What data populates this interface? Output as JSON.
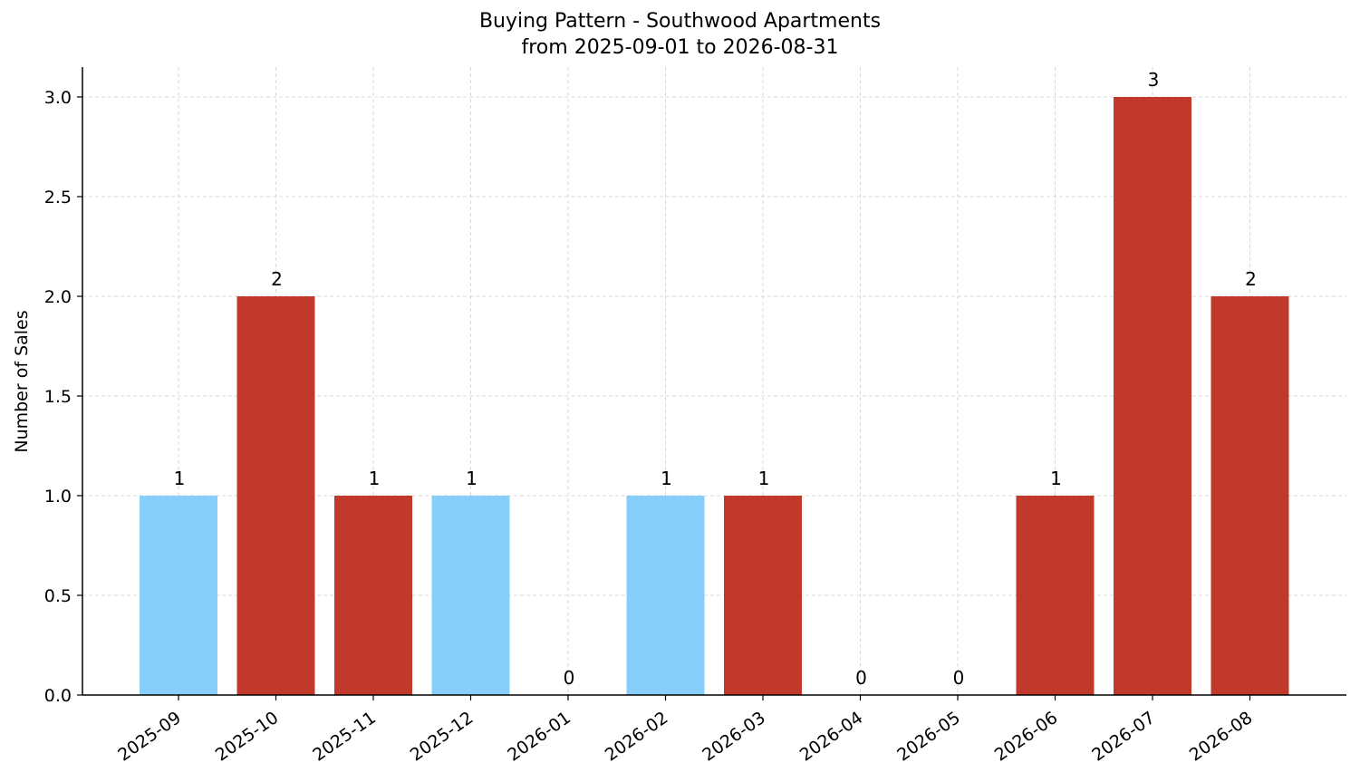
{
  "chart_data": {
    "type": "bar",
    "title": "Buying Pattern - Southwood Apartments",
    "subtitle": "from 2025-09-01 to 2026-08-31",
    "xlabel": "",
    "ylabel": "Number of Sales",
    "categories": [
      "2025-09",
      "2025-10",
      "2025-11",
      "2025-12",
      "2026-01",
      "2026-02",
      "2026-03",
      "2026-04",
      "2026-05",
      "2026-06",
      "2026-07",
      "2026-08"
    ],
    "values": [
      1,
      2,
      1,
      1,
      0,
      1,
      1,
      0,
      0,
      1,
      3,
      2
    ],
    "data_labels": [
      "1",
      "2",
      "1",
      "1",
      "0",
      "1",
      "1",
      "0",
      "0",
      "1",
      "3",
      "2"
    ],
    "bar_colors": [
      "#87cefa",
      "#c0392b",
      "#c0392b",
      "#87cefa",
      "#c0392b",
      "#87cefa",
      "#c0392b",
      "#c0392b",
      "#c0392b",
      "#c0392b",
      "#c0392b",
      "#c0392b"
    ],
    "ylim": [
      0,
      3.15
    ],
    "yticks": [
      "0.0",
      "0.5",
      "1.0",
      "1.5",
      "2.0",
      "2.5",
      "3.0"
    ],
    "ytick_values": [
      0,
      0.5,
      1.0,
      1.5,
      2.0,
      2.5,
      3.0
    ],
    "grid": true,
    "legend": "none"
  }
}
